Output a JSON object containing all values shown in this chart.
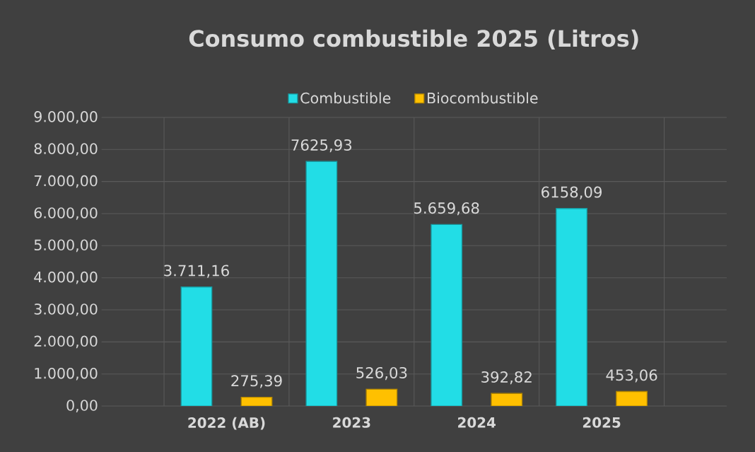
{
  "chart_data": {
    "type": "bar",
    "title": "Consumo combustible 2025 (Litros)",
    "categories": [
      "2022 (AB)",
      "2023",
      "2024",
      "2025"
    ],
    "series": [
      {
        "name": "Combustible",
        "color": "#22dde6",
        "values": [
          3711.16,
          7625.93,
          5659.68,
          6158.09
        ],
        "value_labels": [
          "3.711,16",
          "7625,93",
          "5.659,68",
          "6158,09"
        ]
      },
      {
        "name": "Biocombustible",
        "color": "#ffc000",
        "values": [
          275.39,
          526.03,
          392.82,
          453.06
        ],
        "value_labels": [
          "275,39",
          "526,03",
          "392,82",
          "453,06"
        ]
      }
    ],
    "ylim": [
      0,
      9000
    ],
    "yticks": [
      {
        "value": 0,
        "label": "0,00"
      },
      {
        "value": 1000,
        "label": "1.000,00"
      },
      {
        "value": 2000,
        "label": "2.000,00"
      },
      {
        "value": 3000,
        "label": "3.000,00"
      },
      {
        "value": 4000,
        "label": "4.000,00"
      },
      {
        "value": 5000,
        "label": "5.000,00"
      },
      {
        "value": 6000,
        "label": "6.000,00"
      },
      {
        "value": 7000,
        "label": "7.000,00"
      },
      {
        "value": 8000,
        "label": "8.000,00"
      },
      {
        "value": 9000,
        "label": "9.000,00"
      }
    ],
    "grid": true,
    "legend": "top"
  }
}
